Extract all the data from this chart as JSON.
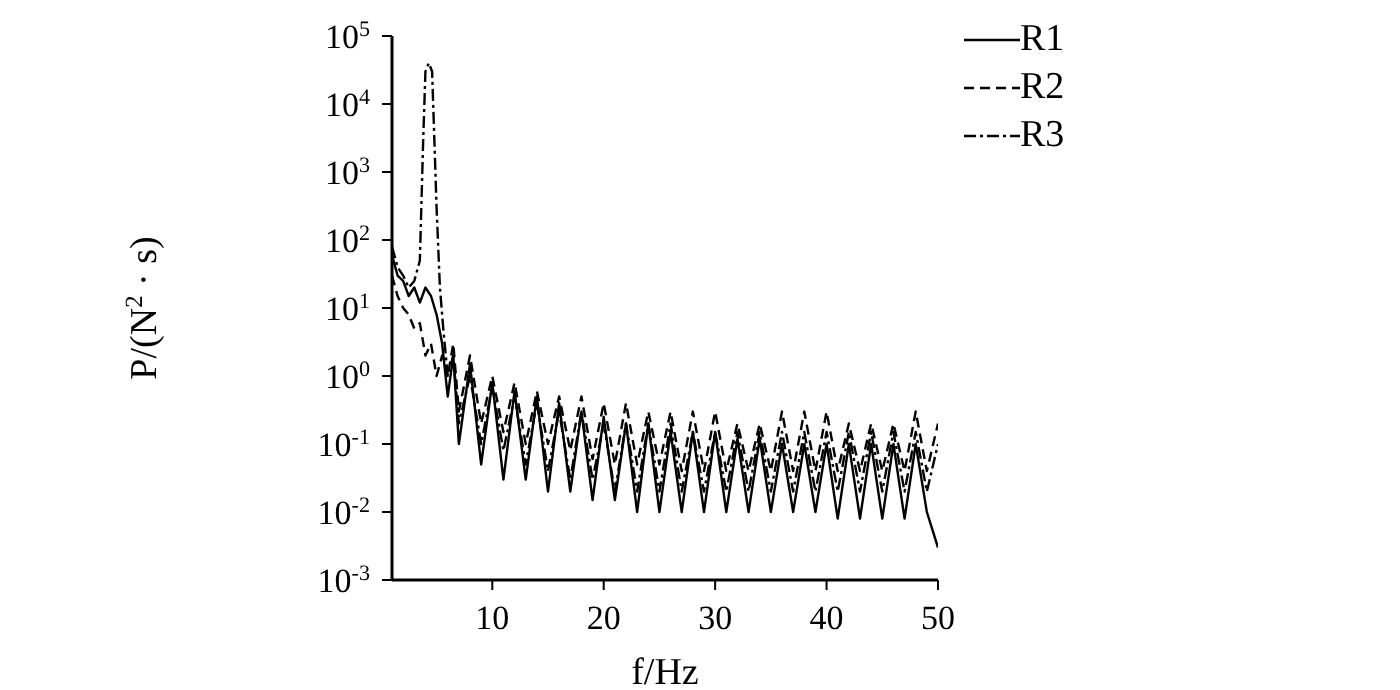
{
  "chart_data": {
    "type": "line",
    "xlabel": "f/Hz",
    "ylabel": "P/(N$^{2}$ · s)",
    "log": "y",
    "xlim": [
      1,
      50
    ],
    "xticks": [
      10,
      20,
      30,
      40,
      50
    ],
    "ylim": [
      0.001,
      100000
    ],
    "yticks": [
      {
        "value": 0.001,
        "label": "10$^{-3}$"
      },
      {
        "value": 0.01,
        "label": "10$^{-2}$"
      },
      {
        "value": 0.1,
        "label": "10$^{-1}$"
      },
      {
        "value": 1,
        "label": "10$^{0}$"
      },
      {
        "value": 10,
        "label": "10$^{1}$"
      },
      {
        "value": 100,
        "label": "10$^{2}$"
      },
      {
        "value": 1000,
        "label": "10$^{3}$"
      },
      {
        "value": 10000,
        "label": "10$^{4}$"
      },
      {
        "value": 100000,
        "label": "10$^{5}$"
      }
    ],
    "grid": false,
    "legend": "top right",
    "marker": "none",
    "series": [
      {
        "name": "R1",
        "color": "#000000",
        "line_style": "solid",
        "x": [
          1,
          1.5,
          2,
          2.5,
          3,
          3.5,
          4,
          4.5,
          5,
          5.5,
          6,
          6.5,
          7,
          8,
          9,
          10,
          11,
          12,
          13,
          14,
          15,
          16,
          17,
          18,
          19,
          20,
          21,
          22,
          23,
          24,
          25,
          26,
          27,
          28,
          29,
          30,
          31,
          32,
          33,
          34,
          35,
          36,
          37,
          38,
          39,
          40,
          41,
          42,
          43,
          44,
          45,
          46,
          47,
          48,
          49,
          50
        ],
        "values": [
          60,
          30,
          25,
          15,
          20,
          12,
          20,
          15,
          8,
          3,
          0.5,
          2,
          0.1,
          1.5,
          0.05,
          0.8,
          0.03,
          0.6,
          0.03,
          0.5,
          0.02,
          0.4,
          0.02,
          0.3,
          0.015,
          0.25,
          0.015,
          0.2,
          0.01,
          0.2,
          0.01,
          0.15,
          0.01,
          0.15,
          0.01,
          0.15,
          0.01,
          0.12,
          0.01,
          0.12,
          0.01,
          0.1,
          0.01,
          0.1,
          0.01,
          0.1,
          0.008,
          0.1,
          0.008,
          0.1,
          0.008,
          0.1,
          0.008,
          0.1,
          0.01,
          0.003
        ]
      },
      {
        "name": "R2",
        "color": "#000000",
        "line_style": "dashed",
        "x": [
          1,
          1.5,
          2,
          2.5,
          3,
          3.5,
          4,
          4.5,
          5,
          5.5,
          6,
          6.5,
          7,
          8,
          9,
          10,
          11,
          12,
          13,
          14,
          15,
          16,
          17,
          18,
          19,
          20,
          21,
          22,
          23,
          24,
          25,
          26,
          27,
          28,
          29,
          30,
          31,
          32,
          33,
          34,
          35,
          36,
          37,
          38,
          39,
          40,
          41,
          42,
          43,
          44,
          45,
          46,
          47,
          48,
          49,
          50
        ],
        "values": [
          30,
          15,
          10,
          8,
          5,
          6,
          2,
          3,
          1,
          2,
          1,
          3,
          0.3,
          2,
          0.2,
          1,
          0.15,
          0.8,
          0.1,
          0.6,
          0.1,
          0.5,
          0.08,
          0.5,
          0.06,
          0.4,
          0.05,
          0.4,
          0.05,
          0.3,
          0.05,
          0.3,
          0.04,
          0.3,
          0.04,
          0.3,
          0.04,
          0.2,
          0.04,
          0.2,
          0.04,
          0.3,
          0.04,
          0.3,
          0.04,
          0.3,
          0.04,
          0.2,
          0.04,
          0.2,
          0.04,
          0.2,
          0.04,
          0.3,
          0.04,
          0.2
        ]
      },
      {
        "name": "R3",
        "color": "#000000",
        "line_style": "dashdot",
        "x": [
          1,
          1.5,
          2,
          2.5,
          3,
          3.5,
          3.8,
          4,
          4.3,
          4.6,
          5,
          5.3,
          5.6,
          6,
          6.5,
          7,
          8,
          9,
          10,
          11,
          12,
          13,
          14,
          15,
          16,
          17,
          18,
          19,
          20,
          21,
          22,
          23,
          24,
          25,
          26,
          27,
          28,
          29,
          30,
          31,
          32,
          33,
          34,
          35,
          36,
          37,
          38,
          39,
          40,
          41,
          42,
          43,
          44,
          45,
          46,
          47,
          48,
          49,
          50
        ],
        "values": [
          80,
          40,
          30,
          20,
          25,
          50,
          3000,
          30000,
          40000,
          30000,
          300,
          20,
          5,
          1,
          2,
          0.2,
          1,
          0.1,
          0.7,
          0.08,
          0.5,
          0.05,
          0.4,
          0.04,
          0.3,
          0.03,
          0.3,
          0.03,
          0.2,
          0.02,
          0.2,
          0.02,
          0.2,
          0.02,
          0.2,
          0.02,
          0.15,
          0.02,
          0.15,
          0.02,
          0.15,
          0.02,
          0.15,
          0.02,
          0.15,
          0.02,
          0.15,
          0.02,
          0.15,
          0.02,
          0.15,
          0.02,
          0.15,
          0.02,
          0.15,
          0.02,
          0.15,
          0.02,
          0.1
        ]
      }
    ]
  }
}
